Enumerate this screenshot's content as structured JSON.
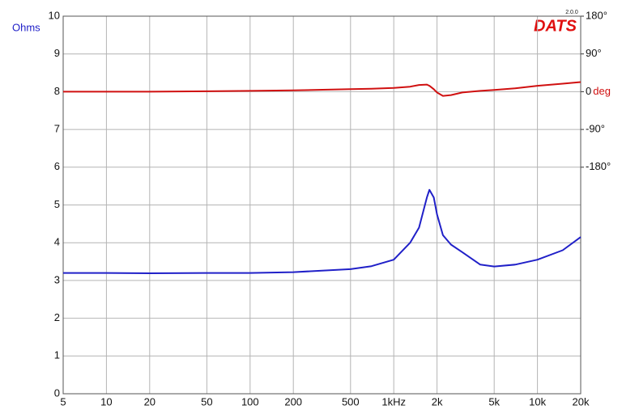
{
  "chart_data": {
    "type": "line",
    "logo": "DATS",
    "version": "2.0.0",
    "ylabel": "Ohms",
    "y2label": "deg",
    "xscale": "log",
    "grid": true,
    "xlim": [
      5,
      20000
    ],
    "xticks": [
      5,
      10,
      20,
      50,
      100,
      200,
      500,
      {
        "value": 1000,
        "label": "1kHz"
      },
      {
        "value": 2000,
        "label": "2k"
      },
      {
        "value": 5000,
        "label": "5k"
      },
      {
        "value": 10000,
        "label": "10k"
      },
      {
        "value": 20000,
        "label": "20k"
      }
    ],
    "ylim": [
      0,
      10
    ],
    "yticks": [
      0,
      1,
      2,
      3,
      4,
      5,
      6,
      7,
      8,
      9,
      10
    ],
    "y2lim": [
      -720,
      180
    ],
    "y2ticks": [
      {
        "value": 180,
        "label": "180°"
      },
      {
        "value": 90,
        "label": "90°"
      },
      0,
      {
        "value": -90,
        "label": "-90°"
      },
      {
        "value": -180,
        "label": "-180°"
      }
    ],
    "x": [
      5,
      10,
      20,
      50,
      100,
      200,
      500,
      700,
      1000,
      1300,
      1500,
      1700,
      1770,
      1900,
      2000,
      2200,
      2500,
      3000,
      4000,
      5000,
      7000,
      10000,
      15000,
      20000
    ],
    "series": [
      {
        "color": "#2020c8",
        "values": [
          3.2,
          3.2,
          3.19,
          3.2,
          3.2,
          3.22,
          3.3,
          3.38,
          3.55,
          4.0,
          4.4,
          5.2,
          5.4,
          5.2,
          4.75,
          4.2,
          3.95,
          3.75,
          3.42,
          3.37,
          3.42,
          3.55,
          3.8,
          4.15
        ]
      },
      {
        "color": "#d01010",
        "axis": "y2",
        "values": [
          0,
          0,
          0,
          1,
          2,
          3,
          6,
          7,
          9,
          12,
          16,
          17,
          14,
          6,
          -2,
          -10,
          -8,
          -2,
          2,
          4,
          8,
          14,
          19,
          23
        ]
      }
    ]
  }
}
